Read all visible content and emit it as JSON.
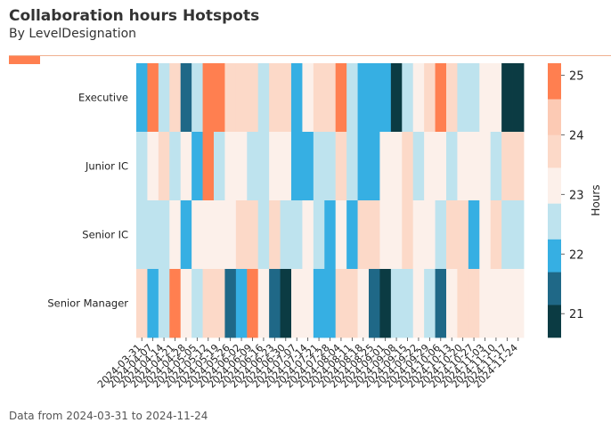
{
  "header": {
    "title": "Collaboration hours Hotspots",
    "subtitle": "By LevelDesignation",
    "accent_color": "#FF7F50"
  },
  "footer": {
    "note": "Data from 2024-03-31 to 2024-11-24"
  },
  "chart_data": {
    "type": "heatmap",
    "title": "Collaboration hours Hotspots",
    "subtitle": "By LevelDesignation",
    "colorbar_label": "Hours",
    "rows": [
      "Executive",
      "Junior IC",
      "Senior IC",
      "Senior Manager"
    ],
    "columns": [
      "2024-03-31",
      "2024-04-07",
      "2024-04-14",
      "2024-04-21",
      "2024-04-28",
      "2024-05-05",
      "2024-05-12",
      "2024-05-19",
      "2024-05-26",
      "2024-06-02",
      "2024-06-09",
      "2024-06-16",
      "2024-06-23",
      "2024-06-30",
      "2024-07-07",
      "2024-07-14",
      "2024-07-21",
      "2024-07-28",
      "2024-08-04",
      "2024-08-11",
      "2024-08-18",
      "2024-08-25",
      "2024-09-01",
      "2024-09-08",
      "2024-09-15",
      "2024-09-22",
      "2024-09-29",
      "2024-10-06",
      "2024-10-13",
      "2024-10-20",
      "2024-10-27",
      "2024-11-03",
      "2024-11-10",
      "2024-11-17",
      "2024-11-24"
    ],
    "values": [
      [
        21.9,
        25.0,
        22.6,
        23.6,
        21.4,
        22.6,
        24.8,
        25.0,
        23.9,
        23.9,
        23.8,
        22.7,
        23.7,
        23.7,
        21.9,
        23.0,
        23.7,
        23.7,
        25.0,
        22.6,
        21.9,
        21.9,
        21.9,
        21.1,
        22.6,
        23.2,
        23.7,
        25.0,
        23.6,
        22.7,
        22.7,
        23.2,
        23.2,
        21.1,
        21.1
      ],
      [
        22.6,
        23.2,
        23.7,
        22.6,
        23.2,
        22.0,
        24.8,
        22.6,
        23.2,
        23.1,
        22.7,
        22.6,
        23.2,
        23.2,
        22.0,
        22.0,
        22.6,
        22.6,
        23.7,
        22.6,
        21.9,
        21.9,
        23.2,
        23.2,
        23.7,
        22.7,
        23.2,
        23.2,
        22.6,
        23.3,
        23.2,
        23.2,
        22.6,
        23.7,
        23.7
      ],
      [
        22.6,
        22.6,
        22.6,
        23.2,
        22.0,
        23.2,
        23.2,
        23.2,
        23.2,
        23.7,
        23.7,
        22.6,
        23.7,
        22.6,
        22.6,
        23.2,
        22.6,
        22.0,
        23.2,
        22.0,
        23.7,
        23.7,
        23.2,
        23.2,
        23.7,
        23.2,
        23.2,
        22.6,
        23.7,
        23.7,
        22.0,
        23.2,
        23.7,
        22.6,
        22.6
      ],
      [
        23.7,
        22.0,
        22.6,
        24.9,
        23.2,
        22.6,
        23.7,
        23.7,
        21.4,
        22.0,
        24.9,
        23.3,
        21.4,
        21.1,
        23.3,
        23.2,
        22.0,
        22.0,
        23.7,
        23.7,
        23.2,
        21.4,
        21.1,
        22.6,
        22.6,
        23.2,
        22.6,
        21.4,
        23.2,
        23.7,
        23.7,
        23.2,
        23.2,
        23.2,
        23.2
      ]
    ],
    "color_bins": [
      {
        "from": 20.6,
        "to": 21.15,
        "color": "#0B3B43"
      },
      {
        "from": 21.15,
        "to": 21.7,
        "color": "#1F6887"
      },
      {
        "from": 21.7,
        "to": 22.25,
        "color": "#36AFE3"
      },
      {
        "from": 22.25,
        "to": 22.85,
        "color": "#BEE3EE"
      },
      {
        "from": 22.85,
        "to": 23.45,
        "color": "#FCF0EA"
      },
      {
        "from": 23.45,
        "to": 24.0,
        "color": "#FCD9C8"
      },
      {
        "from": 24.0,
        "to": 24.6,
        "color": "#FCCAB4"
      },
      {
        "from": 24.6,
        "to": 25.2,
        "color": "#FF7F50"
      }
    ],
    "value_range": [
      20.6,
      25.2
    ],
    "colorbar_ticks": [
      21,
      22,
      23,
      24,
      25
    ]
  }
}
